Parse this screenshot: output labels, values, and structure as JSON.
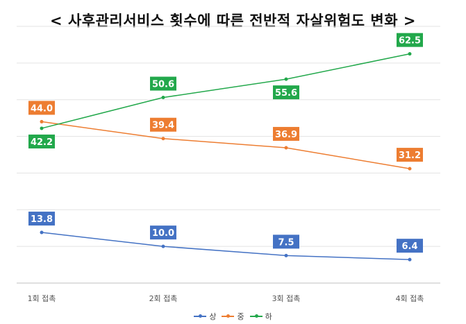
{
  "title": "< 사후관리서비스 횟수에 따른 전반적 자살위험도 변화 >",
  "chart_data": {
    "type": "line",
    "title": "< 사후관리서비스 횟수에 따른 전반적 자살위험도 변화 >",
    "categories": [
      "1회 접촉",
      "2회 접촉",
      "3회 접촉",
      "4회 접촉"
    ],
    "series": [
      {
        "name": "상",
        "color": "#4472C4",
        "values": [
          13.8,
          10.0,
          7.5,
          6.4
        ]
      },
      {
        "name": "중",
        "color": "#ED7D31",
        "values": [
          44.0,
          39.4,
          36.9,
          31.2
        ]
      },
      {
        "name": "하",
        "color": "#22A84B",
        "values": [
          42.2,
          50.6,
          55.6,
          62.5
        ]
      }
    ],
    "ylim": [
      0,
      70
    ],
    "grid": true,
    "legend": "bottom",
    "data_labels": true
  }
}
